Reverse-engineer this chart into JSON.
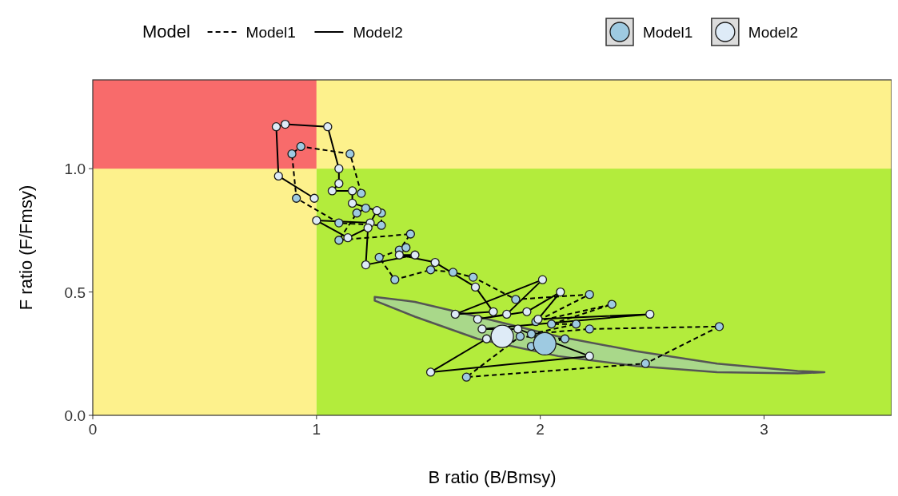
{
  "chart_data": {
    "type": "scatter",
    "xlabel": "B ratio (B/Bmsy)",
    "ylabel": "F ratio (F/Fmsy)",
    "legend_title": "Model",
    "legend": "top",
    "xlim": [
      0,
      3.57
    ],
    "ylim": [
      0,
      1.36
    ],
    "xticks": [
      0,
      1,
      2,
      3
    ],
    "yticks": [
      {
        "value": 0,
        "label": "0.0"
      },
      {
        "value": 0.5,
        "label": "0.5"
      },
      {
        "value": 1,
        "label": "1.0"
      }
    ],
    "bands": [
      {
        "axis": "x",
        "from": 0,
        "to": 1,
        "color": "#fdf18c"
      },
      {
        "axis": "x",
        "from": 1,
        "to": 3.57,
        "color": "#b3ec3c"
      },
      {
        "axis": "y",
        "from": 1,
        "to": 1.36,
        "color": "#f86b6b"
      },
      {
        "axis": "y",
        "from": 1,
        "to": 1.36,
        "color": "#fdf18c"
      }
    ],
    "series": [
      {
        "type": "area",
        "color": "#a9d88a",
        "x": [
          1.26,
          1.44,
          1.72,
          2.08,
          2.43,
          2.79,
          3.15,
          3.27,
          3.15,
          2.79,
          2.43,
          2.08,
          1.72,
          1.44,
          1.26
        ],
        "values": [
          0.48,
          0.46,
          0.4,
          0.32,
          0.26,
          0.21,
          0.18,
          0.175,
          0.17,
          0.175,
          0.2,
          0.24,
          0.31,
          0.4,
          0.465
        ]
      },
      {
        "type": "line",
        "name": "Model1",
        "line_style": "dashed",
        "color": "#000000",
        "x": [
          1.2,
          1.15,
          0.93,
          0.89,
          0.91,
          1.1,
          1.29,
          1.29,
          1.22,
          1.18,
          1.1,
          1.42,
          1.37,
          1.4,
          1.28,
          1.35,
          1.51,
          1.61,
          1.7,
          1.89,
          2.22,
          1.98,
          2.32,
          2.05,
          2.16,
          1.96,
          2.22,
          2.8,
          2.47,
          1.67,
          1.91,
          2.11,
          1.96
        ],
        "values": [
          0.9,
          1.06,
          1.09,
          1.06,
          0.88,
          0.78,
          0.77,
          0.82,
          0.84,
          0.82,
          0.71,
          0.735,
          0.67,
          0.68,
          0.64,
          0.55,
          0.59,
          0.58,
          0.56,
          0.47,
          0.49,
          0.38,
          0.45,
          0.37,
          0.37,
          0.33,
          0.35,
          0.36,
          0.21,
          0.155,
          0.32,
          0.31,
          0.28
        ]
      },
      {
        "type": "line",
        "name": "Model2",
        "line_style": "solid",
        "color": "#000000",
        "x": [
          0.99,
          0.83,
          0.82,
          0.86,
          1.05,
          1.1,
          1.1,
          1.07,
          1.16,
          1.16,
          1.27,
          1.24,
          1.0,
          1.14,
          1.23,
          1.22,
          1.44,
          1.37,
          1.53,
          1.71,
          1.79,
          1.62,
          2.01,
          1.85,
          1.72,
          1.94,
          2.09,
          1.99,
          2.49,
          1.74,
          1.9,
          2.22,
          1.51,
          1.76
        ],
        "values": [
          0.88,
          0.97,
          1.17,
          1.18,
          1.17,
          1.0,
          0.94,
          0.91,
          0.91,
          0.86,
          0.83,
          0.78,
          0.79,
          0.72,
          0.76,
          0.61,
          0.65,
          0.65,
          0.62,
          0.52,
          0.42,
          0.41,
          0.55,
          0.41,
          0.39,
          0.42,
          0.5,
          0.39,
          0.41,
          0.35,
          0.35,
          0.24,
          0.175,
          0.31
        ]
      },
      {
        "marker": "circle",
        "color": "#9ecae1",
        "x": [
          1.2,
          1.15,
          0.93,
          0.89,
          0.91,
          1.1,
          1.29,
          1.29,
          1.22,
          1.18,
          1.1,
          1.42,
          1.37,
          1.4,
          1.28,
          1.35,
          1.51,
          1.61,
          1.7,
          1.89,
          2.22,
          1.98,
          2.32,
          2.05,
          2.16,
          1.96,
          2.22,
          2.8,
          2.47,
          1.67,
          1.91,
          2.11,
          1.96
        ],
        "values": [
          0.9,
          1.06,
          1.09,
          1.06,
          0.88,
          0.78,
          0.77,
          0.82,
          0.84,
          0.82,
          0.71,
          0.735,
          0.67,
          0.68,
          0.64,
          0.55,
          0.59,
          0.58,
          0.56,
          0.47,
          0.49,
          0.38,
          0.45,
          0.37,
          0.37,
          0.33,
          0.35,
          0.36,
          0.21,
          0.155,
          0.32,
          0.31,
          0.28
        ]
      },
      {
        "marker": "circle",
        "color": "#deebf7",
        "x": [
          0.99,
          0.83,
          0.82,
          0.86,
          1.05,
          1.1,
          1.1,
          1.07,
          1.16,
          1.16,
          1.27,
          1.24,
          1.0,
          1.14,
          1.23,
          1.22,
          1.44,
          1.37,
          1.53,
          1.71,
          1.79,
          1.62,
          2.01,
          1.85,
          1.72,
          1.94,
          2.09,
          1.99,
          2.49,
          1.74,
          1.9,
          2.22,
          1.51,
          1.76
        ],
        "values": [
          0.88,
          0.97,
          1.17,
          1.18,
          1.17,
          1.0,
          0.94,
          0.91,
          0.91,
          0.86,
          0.83,
          0.78,
          0.79,
          0.72,
          0.76,
          0.61,
          0.65,
          0.65,
          0.62,
          0.52,
          0.42,
          0.41,
          0.55,
          0.41,
          0.39,
          0.42,
          0.5,
          0.39,
          0.41,
          0.35,
          0.35,
          0.24,
          0.175,
          0.31
        ]
      },
      {
        "type": "bubble",
        "name": "Model1",
        "color": "#9ecae1",
        "x": [
          2.02
        ],
        "values": [
          0.29
        ],
        "sizes": [
          1
        ]
      },
      {
        "type": "bubble",
        "name": "Model2",
        "color": "#deebf7",
        "x": [
          1.83
        ],
        "values": [
          0.32
        ],
        "sizes": [
          1
        ]
      }
    ]
  }
}
